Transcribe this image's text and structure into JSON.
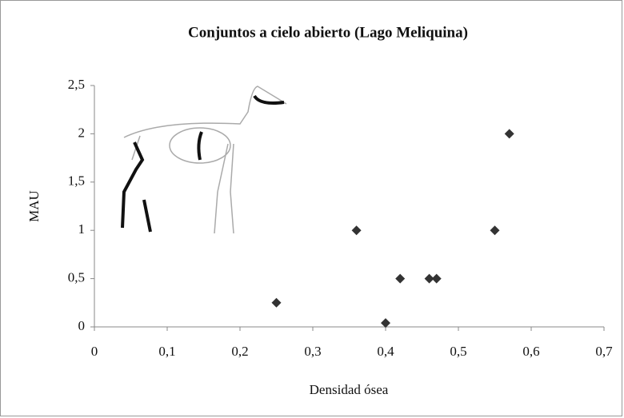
{
  "chart_data": {
    "type": "scatter",
    "title": "Conjuntos a cielo abierto (Lago Meliquina)",
    "x_label": "Densidad ósea",
    "y_label": "MAU",
    "x": [
      0.25,
      0.36,
      0.4,
      0.42,
      0.46,
      0.47,
      0.55,
      0.57
    ],
    "values": [
      0.25,
      1,
      0.04,
      0.5,
      0.5,
      0.5,
      1,
      2
    ],
    "color": "#333333",
    "xlim": [
      0,
      0.7
    ],
    "xticks": [
      0,
      {
        "value": 0.1,
        "label": "0,1"
      },
      {
        "value": 0.2,
        "label": "0,2"
      },
      {
        "value": 0.3,
        "label": "0,3"
      },
      {
        "value": 0.4,
        "label": "0,4"
      },
      {
        "value": 0.5,
        "label": "0,5"
      },
      {
        "value": 0.6,
        "label": "0,6"
      },
      {
        "value": 0.7,
        "label": "0,7"
      }
    ],
    "ylim": [
      0,
      2.5
    ],
    "yticks": [
      0,
      {
        "value": 0.5,
        "label": "0,5"
      },
      1,
      {
        "value": 1.5,
        "label": "1,5"
      },
      2,
      {
        "value": 2.5,
        "label": "2,5"
      }
    ],
    "grid": false
  }
}
